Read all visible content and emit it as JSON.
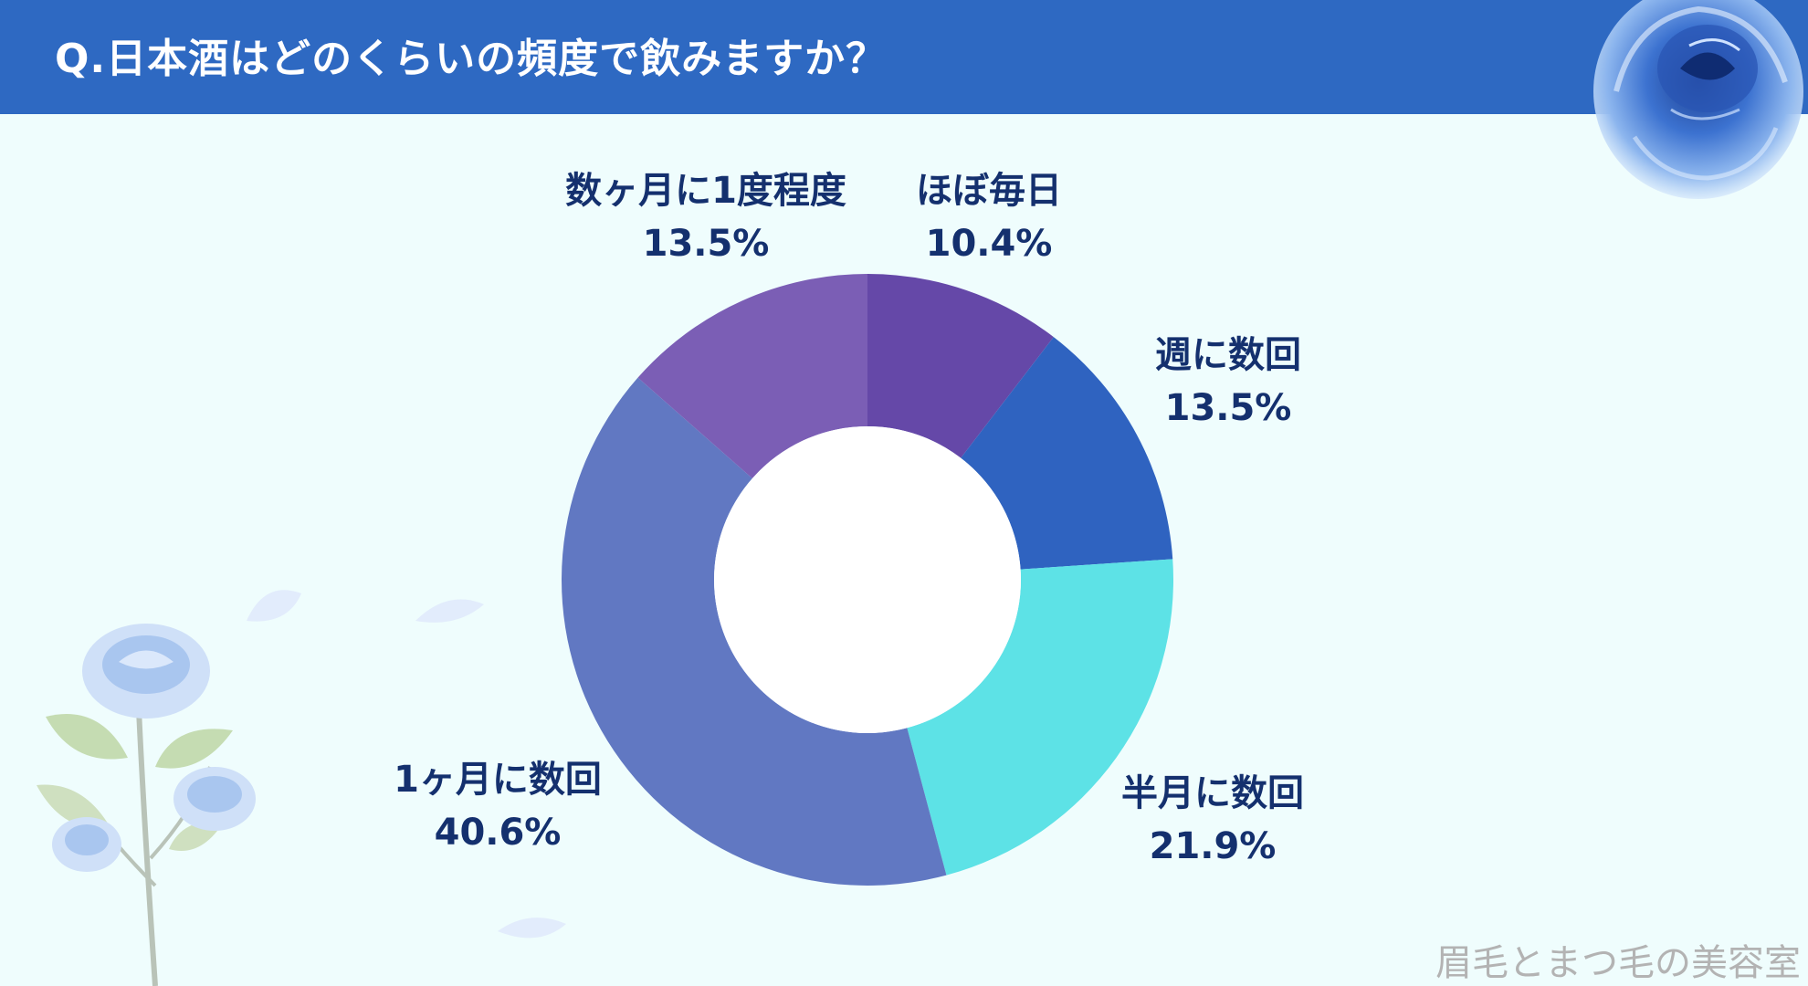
{
  "title": "Q.日本酒はどのくらいの頻度で飲みますか？",
  "watermark": "眉毛とまつ毛の美容室",
  "decorations": [
    "rose-icon",
    "rose-stem-icon",
    "petal-icon"
  ],
  "colors": {
    "header": "#2e69c2",
    "background": "#effdfd",
    "label": "#14306e"
  },
  "chart_data": {
    "type": "pie",
    "variant": "donut",
    "title": "",
    "series": [
      {
        "label": "ほぼ毎日",
        "value": 10.4,
        "value_label": "10.4%",
        "color": "#6548a8"
      },
      {
        "label": "週に数回",
        "value": 13.5,
        "value_label": "13.5%",
        "color": "#2f63c0"
      },
      {
        "label": "半月に数回",
        "value": 21.9,
        "value_label": "21.9%",
        "color": "#5de2e6"
      },
      {
        "label": "1ヶ月に数回",
        "value": 40.6,
        "value_label": "40.6%",
        "color": "#6178c2"
      },
      {
        "label": "数ヶ月に1度程度",
        "value": 13.5,
        "value_label": "13.5%",
        "color": "#7b5eb5"
      }
    ]
  }
}
